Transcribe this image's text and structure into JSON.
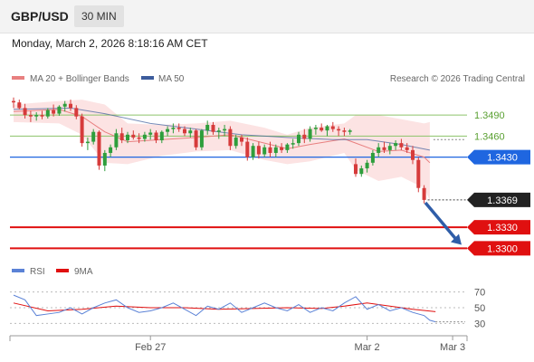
{
  "header": {
    "symbol": "GBP/USD",
    "interval": "30 MIN",
    "datetime": "Monday, March 2, 2026 8:18:16 AM CET"
  },
  "legend": {
    "ma20": "MA 20 + Bollinger Bands",
    "ma50": "MA 50",
    "copyright": "Research © 2026 Trading Central"
  },
  "rsi_legend": {
    "rsi": "RSI",
    "ma9": "9MA"
  },
  "colors": {
    "up": "#2e9e3c",
    "down": "#d63b3b",
    "ma20": "#e88080",
    "ma50": "#3d5c9c",
    "band": "#fbdada",
    "green_level": "#8cc36a",
    "blue_level": "#1f66e0",
    "red_level": "#e01010",
    "last_tag": "#222222",
    "rsi": "#5b82d6",
    "rsi_ma": "#e01010",
    "arrow": "#2f5da8"
  },
  "chart_data": {
    "type": "candlestick",
    "price_range": [
      1.3285,
      1.3525
    ],
    "last_price": "1.3369",
    "levels": [
      {
        "value": 1.349,
        "label": "1.3490",
        "kind": "resistance-green"
      },
      {
        "value": 1.346,
        "label": "1.3460",
        "kind": "resistance-green"
      },
      {
        "value": 1.343,
        "label": "1.3430",
        "kind": "pivot-blue"
      },
      {
        "value": 1.333,
        "label": "1.3330",
        "kind": "support-red"
      },
      {
        "value": 1.33,
        "label": "1.3300",
        "kind": "support-red"
      }
    ],
    "x_labels": [
      {
        "label": "Feb 27",
        "index": 24
      },
      {
        "label": "Mar 2",
        "index": 62
      },
      {
        "label": "Mar 3",
        "index": 77
      }
    ],
    "candles": [
      [
        1.351,
        1.3515,
        1.35,
        1.3508
      ],
      [
        1.3508,
        1.3512,
        1.3498,
        1.35
      ],
      [
        1.35,
        1.3506,
        1.3485,
        1.349
      ],
      [
        1.349,
        1.3496,
        1.348,
        1.3488
      ],
      [
        1.3488,
        1.3494,
        1.3482,
        1.349
      ],
      [
        1.349,
        1.3496,
        1.3484,
        1.3488
      ],
      [
        1.3488,
        1.35,
        1.3485,
        1.3497
      ],
      [
        1.3497,
        1.3505,
        1.3488,
        1.3492
      ],
      [
        1.3492,
        1.3504,
        1.3489,
        1.3502
      ],
      [
        1.3502,
        1.351,
        1.3495,
        1.3506
      ],
      [
        1.3506,
        1.3512,
        1.3496,
        1.35
      ],
      [
        1.35,
        1.3504,
        1.3484,
        1.3488
      ],
      [
        1.3488,
        1.3492,
        1.3445,
        1.345
      ],
      [
        1.345,
        1.3458,
        1.344,
        1.3452
      ],
      [
        1.3452,
        1.347,
        1.3448,
        1.3466
      ],
      [
        1.3466,
        1.3468,
        1.3412,
        1.3418
      ],
      [
        1.3418,
        1.344,
        1.341,
        1.3436
      ],
      [
        1.3436,
        1.3448,
        1.343,
        1.3444
      ],
      [
        1.3444,
        1.347,
        1.344,
        1.3464
      ],
      [
        1.3464,
        1.3472,
        1.345,
        1.3454
      ],
      [
        1.3454,
        1.3466,
        1.345,
        1.3462
      ],
      [
        1.3462,
        1.3468,
        1.3455,
        1.3458
      ],
      [
        1.3458,
        1.3464,
        1.345,
        1.3456
      ],
      [
        1.3456,
        1.3466,
        1.3452,
        1.3462
      ],
      [
        1.3462,
        1.347,
        1.3455,
        1.3465
      ],
      [
        1.3465,
        1.3468,
        1.345,
        1.3454
      ],
      [
        1.3454,
        1.3468,
        1.345,
        1.3466
      ],
      [
        1.3466,
        1.3474,
        1.346,
        1.347
      ],
      [
        1.347,
        1.3478,
        1.3464,
        1.3472
      ],
      [
        1.3472,
        1.3478,
        1.3466,
        1.347
      ],
      [
        1.347,
        1.3474,
        1.346,
        1.3464
      ],
      [
        1.3464,
        1.3472,
        1.3458,
        1.3468
      ],
      [
        1.3468,
        1.347,
        1.344,
        1.3444
      ],
      [
        1.3444,
        1.347,
        1.344,
        1.3468
      ],
      [
        1.3468,
        1.3482,
        1.3462,
        1.3476
      ],
      [
        1.3476,
        1.348,
        1.3462,
        1.3466
      ],
      [
        1.3466,
        1.3472,
        1.3456,
        1.3468
      ],
      [
        1.3468,
        1.3476,
        1.346,
        1.347
      ],
      [
        1.347,
        1.3474,
        1.344,
        1.3446
      ],
      [
        1.3446,
        1.3462,
        1.3442,
        1.3458
      ],
      [
        1.3458,
        1.3462,
        1.3446,
        1.3452
      ],
      [
        1.3452,
        1.3458,
        1.3425,
        1.343
      ],
      [
        1.343,
        1.345,
        1.3426,
        1.3446
      ],
      [
        1.3446,
        1.3452,
        1.3428,
        1.3434
      ],
      [
        1.3434,
        1.3448,
        1.343,
        1.3444
      ],
      [
        1.3444,
        1.3452,
        1.343,
        1.3436
      ],
      [
        1.3436,
        1.3448,
        1.343,
        1.3444
      ],
      [
        1.3444,
        1.345,
        1.3436,
        1.344
      ],
      [
        1.344,
        1.345,
        1.3436,
        1.3448
      ],
      [
        1.3448,
        1.3456,
        1.3442,
        1.345
      ],
      [
        1.345,
        1.3466,
        1.3446,
        1.3462
      ],
      [
        1.3462,
        1.347,
        1.345,
        1.3456
      ],
      [
        1.3456,
        1.3474,
        1.3452,
        1.347
      ],
      [
        1.347,
        1.3476,
        1.3462,
        1.3472
      ],
      [
        1.3472,
        1.3478,
        1.3466,
        1.3468
      ],
      [
        1.3468,
        1.3476,
        1.346,
        1.3474
      ],
      [
        1.3474,
        1.348,
        1.3466,
        1.347
      ],
      [
        1.347,
        1.3474,
        1.346,
        1.3468
      ],
      [
        1.3468,
        1.3472,
        1.346,
        1.3466
      ],
      [
        1.3466,
        1.347,
        1.3462,
        1.3468
      ],
      [
        1.342,
        1.3428,
        1.3402,
        1.3406
      ],
      [
        1.3406,
        1.3418,
        1.3402,
        1.3414
      ],
      [
        1.3414,
        1.3426,
        1.3408,
        1.3422
      ],
      [
        1.3422,
        1.344,
        1.3418,
        1.3436
      ],
      [
        1.3436,
        1.345,
        1.343,
        1.3444
      ],
      [
        1.3444,
        1.3452,
        1.3436,
        1.344
      ],
      [
        1.344,
        1.345,
        1.3434,
        1.3446
      ],
      [
        1.3446,
        1.3454,
        1.344,
        1.345
      ],
      [
        1.345,
        1.3456,
        1.344,
        1.3444
      ],
      [
        1.3444,
        1.345,
        1.3436,
        1.344
      ],
      [
        1.344,
        1.3446,
        1.342,
        1.3426
      ],
      [
        1.3426,
        1.343,
        1.338,
        1.3386
      ],
      [
        1.3386,
        1.339,
        1.3364,
        1.3369
      ]
    ],
    "ma20": [
      [
        0,
        1.3495
      ],
      [
        8,
        1.3498
      ],
      [
        12,
        1.3488
      ],
      [
        16,
        1.3466
      ],
      [
        20,
        1.3452
      ],
      [
        26,
        1.3455
      ],
      [
        32,
        1.3458
      ],
      [
        38,
        1.3462
      ],
      [
        44,
        1.345
      ],
      [
        48,
        1.3442
      ],
      [
        52,
        1.3448
      ],
      [
        58,
        1.3456
      ],
      [
        60,
        1.345
      ],
      [
        64,
        1.3438
      ],
      [
        68,
        1.344
      ],
      [
        72,
        1.343
      ],
      [
        73,
        1.3422
      ]
    ],
    "bollinger_upper": [
      [
        0,
        1.3505
      ],
      [
        8,
        1.351
      ],
      [
        12,
        1.3512
      ],
      [
        16,
        1.3505
      ],
      [
        20,
        1.3478
      ],
      [
        26,
        1.3476
      ],
      [
        32,
        1.3478
      ],
      [
        38,
        1.3482
      ],
      [
        44,
        1.3472
      ],
      [
        48,
        1.3462
      ],
      [
        52,
        1.3472
      ],
      [
        58,
        1.3478
      ],
      [
        60,
        1.349
      ],
      [
        64,
        1.349
      ],
      [
        68,
        1.3484
      ],
      [
        72,
        1.3478
      ],
      [
        73,
        1.348
      ]
    ],
    "bollinger_lower": [
      [
        0,
        1.348
      ],
      [
        8,
        1.3478
      ],
      [
        12,
        1.3462
      ],
      [
        16,
        1.3422
      ],
      [
        20,
        1.342
      ],
      [
        26,
        1.3432
      ],
      [
        32,
        1.3438
      ],
      [
        38,
        1.344
      ],
      [
        44,
        1.3426
      ],
      [
        48,
        1.342
      ],
      [
        52,
        1.3424
      ],
      [
        58,
        1.3436
      ],
      [
        60,
        1.3412
      ],
      [
        64,
        1.3396
      ],
      [
        68,
        1.3402
      ],
      [
        72,
        1.3386
      ],
      [
        73,
        1.3368
      ]
    ],
    "ma50": [
      [
        0,
        1.3498
      ],
      [
        10,
        1.35
      ],
      [
        16,
        1.3492
      ],
      [
        24,
        1.3478
      ],
      [
        32,
        1.347
      ],
      [
        40,
        1.3462
      ],
      [
        48,
        1.3458
      ],
      [
        56,
        1.3455
      ],
      [
        62,
        1.3455
      ],
      [
        68,
        1.3448
      ],
      [
        73,
        1.344
      ]
    ],
    "rsi": {
      "ticks": [
        70,
        50,
        30
      ],
      "range": [
        20,
        80
      ],
      "rsi": [
        [
          0,
          66
        ],
        [
          2,
          60
        ],
        [
          4,
          40
        ],
        [
          6,
          42
        ],
        [
          8,
          44
        ],
        [
          10,
          50
        ],
        [
          12,
          42
        ],
        [
          14,
          50
        ],
        [
          16,
          56
        ],
        [
          18,
          60
        ],
        [
          20,
          50
        ],
        [
          22,
          44
        ],
        [
          24,
          46
        ],
        [
          26,
          50
        ],
        [
          28,
          56
        ],
        [
          30,
          48
        ],
        [
          32,
          40
        ],
        [
          34,
          52
        ],
        [
          36,
          48
        ],
        [
          38,
          56
        ],
        [
          40,
          44
        ],
        [
          42,
          50
        ],
        [
          44,
          56
        ],
        [
          46,
          50
        ],
        [
          48,
          46
        ],
        [
          50,
          54
        ],
        [
          52,
          44
        ],
        [
          54,
          50
        ],
        [
          56,
          46
        ],
        [
          58,
          56
        ],
        [
          60,
          64
        ],
        [
          62,
          48
        ],
        [
          64,
          54
        ],
        [
          66,
          46
        ],
        [
          68,
          50
        ],
        [
          70,
          44
        ],
        [
          72,
          40
        ],
        [
          73,
          34
        ],
        [
          74,
          32
        ]
      ],
      "ma9": [
        [
          0,
          56
        ],
        [
          6,
          46
        ],
        [
          12,
          48
        ],
        [
          18,
          52
        ],
        [
          24,
          50
        ],
        [
          30,
          50
        ],
        [
          36,
          48
        ],
        [
          42,
          49
        ],
        [
          48,
          50
        ],
        [
          54,
          49
        ],
        [
          58,
          52
        ],
        [
          62,
          56
        ],
        [
          66,
          52
        ],
        [
          70,
          48
        ],
        [
          74,
          45
        ]
      ]
    }
  }
}
